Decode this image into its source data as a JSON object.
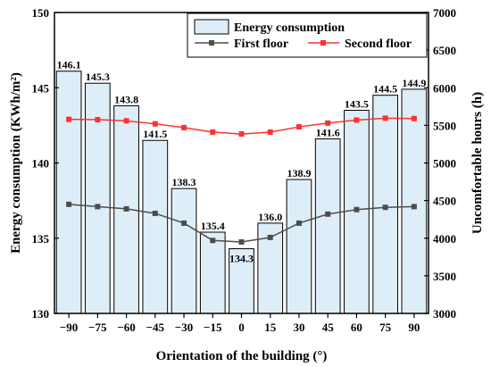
{
  "chart_data": {
    "type": "bar",
    "xlabel": "Orientation of the building (°)",
    "ylabel_left": "Energy consumption (KWh/m²)",
    "ylabel_right": "Uncomfortable hours (h)",
    "categories": [
      "-90",
      "-75",
      "-60",
      "-45",
      "-30",
      "-15",
      "0",
      "15",
      "30",
      "45",
      "60",
      "75",
      "90"
    ],
    "ylim_left": [
      130,
      150
    ],
    "yticks_left": [
      130,
      135,
      140,
      145,
      150
    ],
    "ylim_right": [
      3000,
      7000
    ],
    "yticks_right": [
      3000,
      3500,
      4000,
      4500,
      5000,
      5500,
      6000,
      6500,
      7000
    ],
    "bars": {
      "name": "Energy consumption",
      "axis": "left",
      "values": [
        146.1,
        145.3,
        143.8,
        141.5,
        138.3,
        135.4,
        134.3,
        136.0,
        138.9,
        141.6,
        143.5,
        144.5,
        144.9
      ],
      "labels": [
        "146.1",
        "145.3",
        "143.8",
        "141.5",
        "138.3",
        "135.4",
        "134.3",
        "136.0",
        "138.9",
        "141.6",
        "143.5",
        "144.5",
        "144.9"
      ],
      "color": "#deeef8"
    },
    "series": [
      {
        "name": "First floor",
        "axis": "right",
        "color": "#4d4d4d",
        "marker": "square",
        "values": [
          4450,
          4420,
          4390,
          4330,
          4200,
          3970,
          3950,
          4010,
          4200,
          4320,
          4380,
          4410,
          4420
        ]
      },
      {
        "name": "Second floor",
        "axis": "right",
        "color": "#ff3030",
        "marker": "square",
        "values": [
          5580,
          5575,
          5560,
          5520,
          5470,
          5410,
          5385,
          5410,
          5480,
          5530,
          5570,
          5595,
          5590
        ]
      }
    ],
    "legend": {
      "position": "top-right",
      "entries": [
        "Energy consumption",
        "First floor",
        "Second floor"
      ]
    },
    "grid": false
  }
}
